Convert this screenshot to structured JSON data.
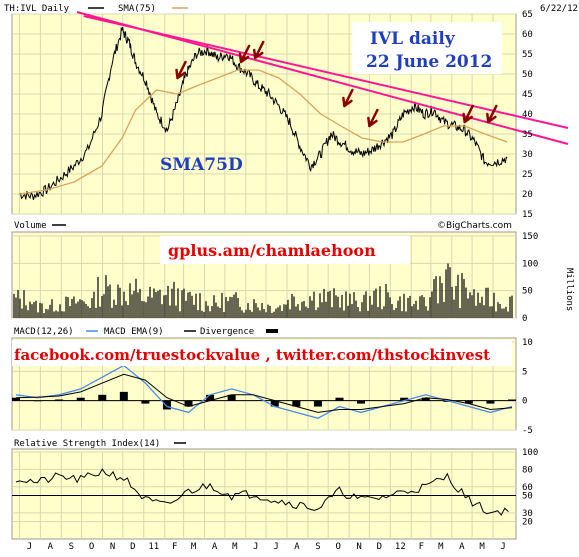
{
  "header": {
    "symbol_label": "TH:IVL Daily",
    "sma_label": "SMA(75)",
    "date_label": "6/22/12",
    "watermark": "©BigCharts.com"
  },
  "annotations": {
    "title_line1": "IVL daily",
    "title_line2": "22 June 2012",
    "sma_note": "SMA75D",
    "gplus": "gplus.am/chamlaehoon",
    "social": "facebook.com/truestockvalue , twitter.com/thstockinvest"
  },
  "colors": {
    "background": "#ffffcc",
    "grid": "#d8d8b0",
    "price": "#000000",
    "sma": "#d9a35c",
    "trendline": "#ff1493",
    "arrow": "#8b0000",
    "macd": "#4a8ae8",
    "macd_signal": "#000000",
    "annotation_blue": "#1f3fbf",
    "annotation_red": "#e60000"
  },
  "chart_data": [
    {
      "type": "line",
      "title": "TH:IVL Daily",
      "series": [
        {
          "name": "TH:IVL Daily",
          "x": [
            "2010-07-01",
            "2010-07-20",
            "2010-08-10",
            "2010-08-31",
            "2010-09-20",
            "2010-10-10",
            "2010-10-31",
            "2010-11-15",
            "2010-11-30",
            "2010-12-10",
            "2010-12-20",
            "2011-01-05",
            "2011-01-20",
            "2011-02-05",
            "2011-02-20",
            "2011-03-05",
            "2011-03-20",
            "2011-04-05",
            "2011-04-20",
            "2011-05-05",
            "2011-05-20",
            "2011-06-05",
            "2011-06-20",
            "2011-07-05",
            "2011-07-20",
            "2011-08-05",
            "2011-08-20",
            "2011-09-05",
            "2011-09-20",
            "2011-10-05",
            "2011-10-20",
            "2011-11-05",
            "2011-11-20",
            "2011-12-05",
            "2011-12-20",
            "2012-01-05",
            "2012-01-20",
            "2012-02-05",
            "2012-02-20",
            "2012-03-05",
            "2012-03-20",
            "2012-04-05",
            "2012-04-20",
            "2012-05-05",
            "2012-05-20",
            "2012-06-05",
            "2012-06-22"
          ],
          "values": [
            20,
            19.5,
            21,
            24,
            27,
            31,
            40,
            53,
            61,
            58,
            53,
            48,
            40,
            36,
            43,
            50,
            55,
            56,
            54,
            55,
            52,
            50,
            47,
            45,
            42,
            38,
            32,
            27,
            30,
            35,
            33,
            31,
            30,
            31,
            33,
            35,
            40,
            42,
            40,
            41,
            38,
            37,
            36,
            33,
            28,
            28,
            29
          ]
        },
        {
          "name": "SMA(75)",
          "x": [
            "2010-07-01",
            "2010-08-10",
            "2010-09-20",
            "2010-10-31",
            "2010-11-30",
            "2010-12-20",
            "2011-01-20",
            "2011-02-20",
            "2011-03-20",
            "2011-04-20",
            "2011-05-20",
            "2011-06-20",
            "2011-07-20",
            "2011-08-20",
            "2011-09-20",
            "2011-10-20",
            "2011-11-20",
            "2011-12-20",
            "2012-01-20",
            "2012-02-20",
            "2012-03-20",
            "2012-04-20",
            "2012-05-20",
            "2012-06-22"
          ],
          "values": [
            20,
            21,
            23,
            27,
            34,
            41,
            46,
            45,
            47,
            49,
            51,
            51,
            49,
            45,
            40,
            37,
            34,
            33,
            33,
            35,
            37,
            37,
            35,
            33
          ]
        }
      ],
      "ylim": [
        15,
        65
      ],
      "yticks": [
        15,
        20,
        25,
        30,
        35,
        40,
        45,
        50,
        55,
        60,
        65
      ],
      "xticks": [
        "J",
        "A",
        "S",
        "O",
        "N",
        "D",
        "11",
        "F",
        "M",
        "A",
        "M",
        "J",
        "J",
        "A",
        "S",
        "O",
        "N",
        "D",
        "12",
        "F",
        "M",
        "A",
        "M",
        "J"
      ],
      "trendlines": [
        {
          "x": [
            "2010-11-25",
            "2012-06-25"
          ],
          "values": [
            63,
            38
          ]
        },
        {
          "x": [
            "2010-11-15",
            "2012-06-25"
          ],
          "values": [
            64,
            34
          ]
        }
      ],
      "arrows_at": [
        {
          "x": "2011-02-20",
          "y": 49
        },
        {
          "x": "2011-05-25",
          "y": 53
        },
        {
          "x": "2011-06-15",
          "y": 54
        },
        {
          "x": "2011-10-25",
          "y": 42
        },
        {
          "x": "2011-12-01",
          "y": 37
        },
        {
          "x": "2012-04-20",
          "y": 38
        },
        {
          "x": "2012-05-25",
          "y": 38
        }
      ],
      "grid": true
    },
    {
      "type": "bar",
      "title": "Volume",
      "ylabel": "Millions",
      "ylim": [
        0,
        150
      ],
      "yticks": [
        0,
        50,
        100,
        150
      ],
      "x": [
        "2010-07",
        "2010-08",
        "2010-09",
        "2010-10",
        "2010-11",
        "2010-12",
        "2011-01",
        "2011-02",
        "2011-03",
        "2011-04",
        "2011-05",
        "2011-06",
        "2011-07",
        "2011-08",
        "2011-09",
        "2011-10",
        "2011-11",
        "2011-12",
        "2012-01",
        "2012-02",
        "2012-03",
        "2012-04",
        "2012-05",
        "2012-06"
      ],
      "values": [
        40,
        25,
        30,
        35,
        60,
        55,
        45,
        50,
        40,
        30,
        35,
        30,
        25,
        40,
        45,
        40,
        35,
        45,
        35,
        30,
        80,
        60,
        40,
        35
      ]
    },
    {
      "type": "line",
      "title": "MACD(12,26)",
      "series": [
        {
          "name": "MACD(12,26)",
          "values": [
            1,
            0.5,
            1,
            2,
            4,
            6,
            3,
            -1,
            -2,
            1,
            2,
            1,
            -1,
            -2,
            -3,
            -1,
            -2,
            -1,
            0,
            1,
            0,
            -1,
            -2,
            -1
          ]
        },
        {
          "name": "MACD EMA(9)",
          "values": [
            0.5,
            0.6,
            0.8,
            1.5,
            3,
            4.5,
            3.5,
            0.5,
            -1,
            0,
            1,
            1,
            0,
            -1,
            -2,
            -1.5,
            -1.5,
            -1,
            -0.5,
            0.5,
            0.2,
            -0.5,
            -1.5,
            -1.2
          ]
        }
      ],
      "legend": [
        "MACD(12,26)",
        "MACD EMA(9)",
        "Divergence"
      ],
      "ylim": [
        -5,
        10
      ],
      "yticks": [
        -5,
        0,
        5,
        10
      ]
    },
    {
      "type": "line",
      "title": "Relative Strength Index(14)",
      "series": [
        {
          "name": "Relative Strength Index(14)",
          "values": [
            70,
            65,
            72,
            68,
            78,
            70,
            45,
            38,
            55,
            62,
            50,
            52,
            45,
            40,
            35,
            55,
            45,
            48,
            55,
            60,
            72,
            45,
            30,
            35
          ]
        }
      ],
      "ylim": [
        0,
        100
      ],
      "yticks": [
        20,
        30,
        50,
        60,
        80,
        100
      ]
    }
  ]
}
